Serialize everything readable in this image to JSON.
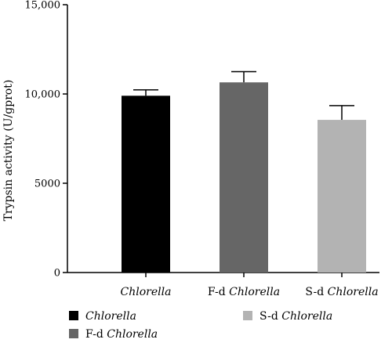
{
  "chart_data": {
    "type": "bar",
    "ylabel": "Trypsin activity (U/gprot)",
    "ylim": [
      0,
      15000
    ],
    "yticks": [
      0,
      5000,
      10000,
      15000
    ],
    "ytick_labels": [
      "0",
      "5000",
      "10,000",
      "15,000"
    ],
    "categories": [
      {
        "prefix": "",
        "italic": "Chlorella"
      },
      {
        "prefix": "F-d ",
        "italic": "Chlorella"
      },
      {
        "prefix": "S-d ",
        "italic": "Chlorella"
      }
    ],
    "values": [
      9900,
      10650,
      8550
    ],
    "errors": [
      330,
      600,
      800
    ],
    "colors": [
      "#000000",
      "#666666",
      "#b3b3b3"
    ],
    "grid": false,
    "legend_placement": "bottom"
  }
}
